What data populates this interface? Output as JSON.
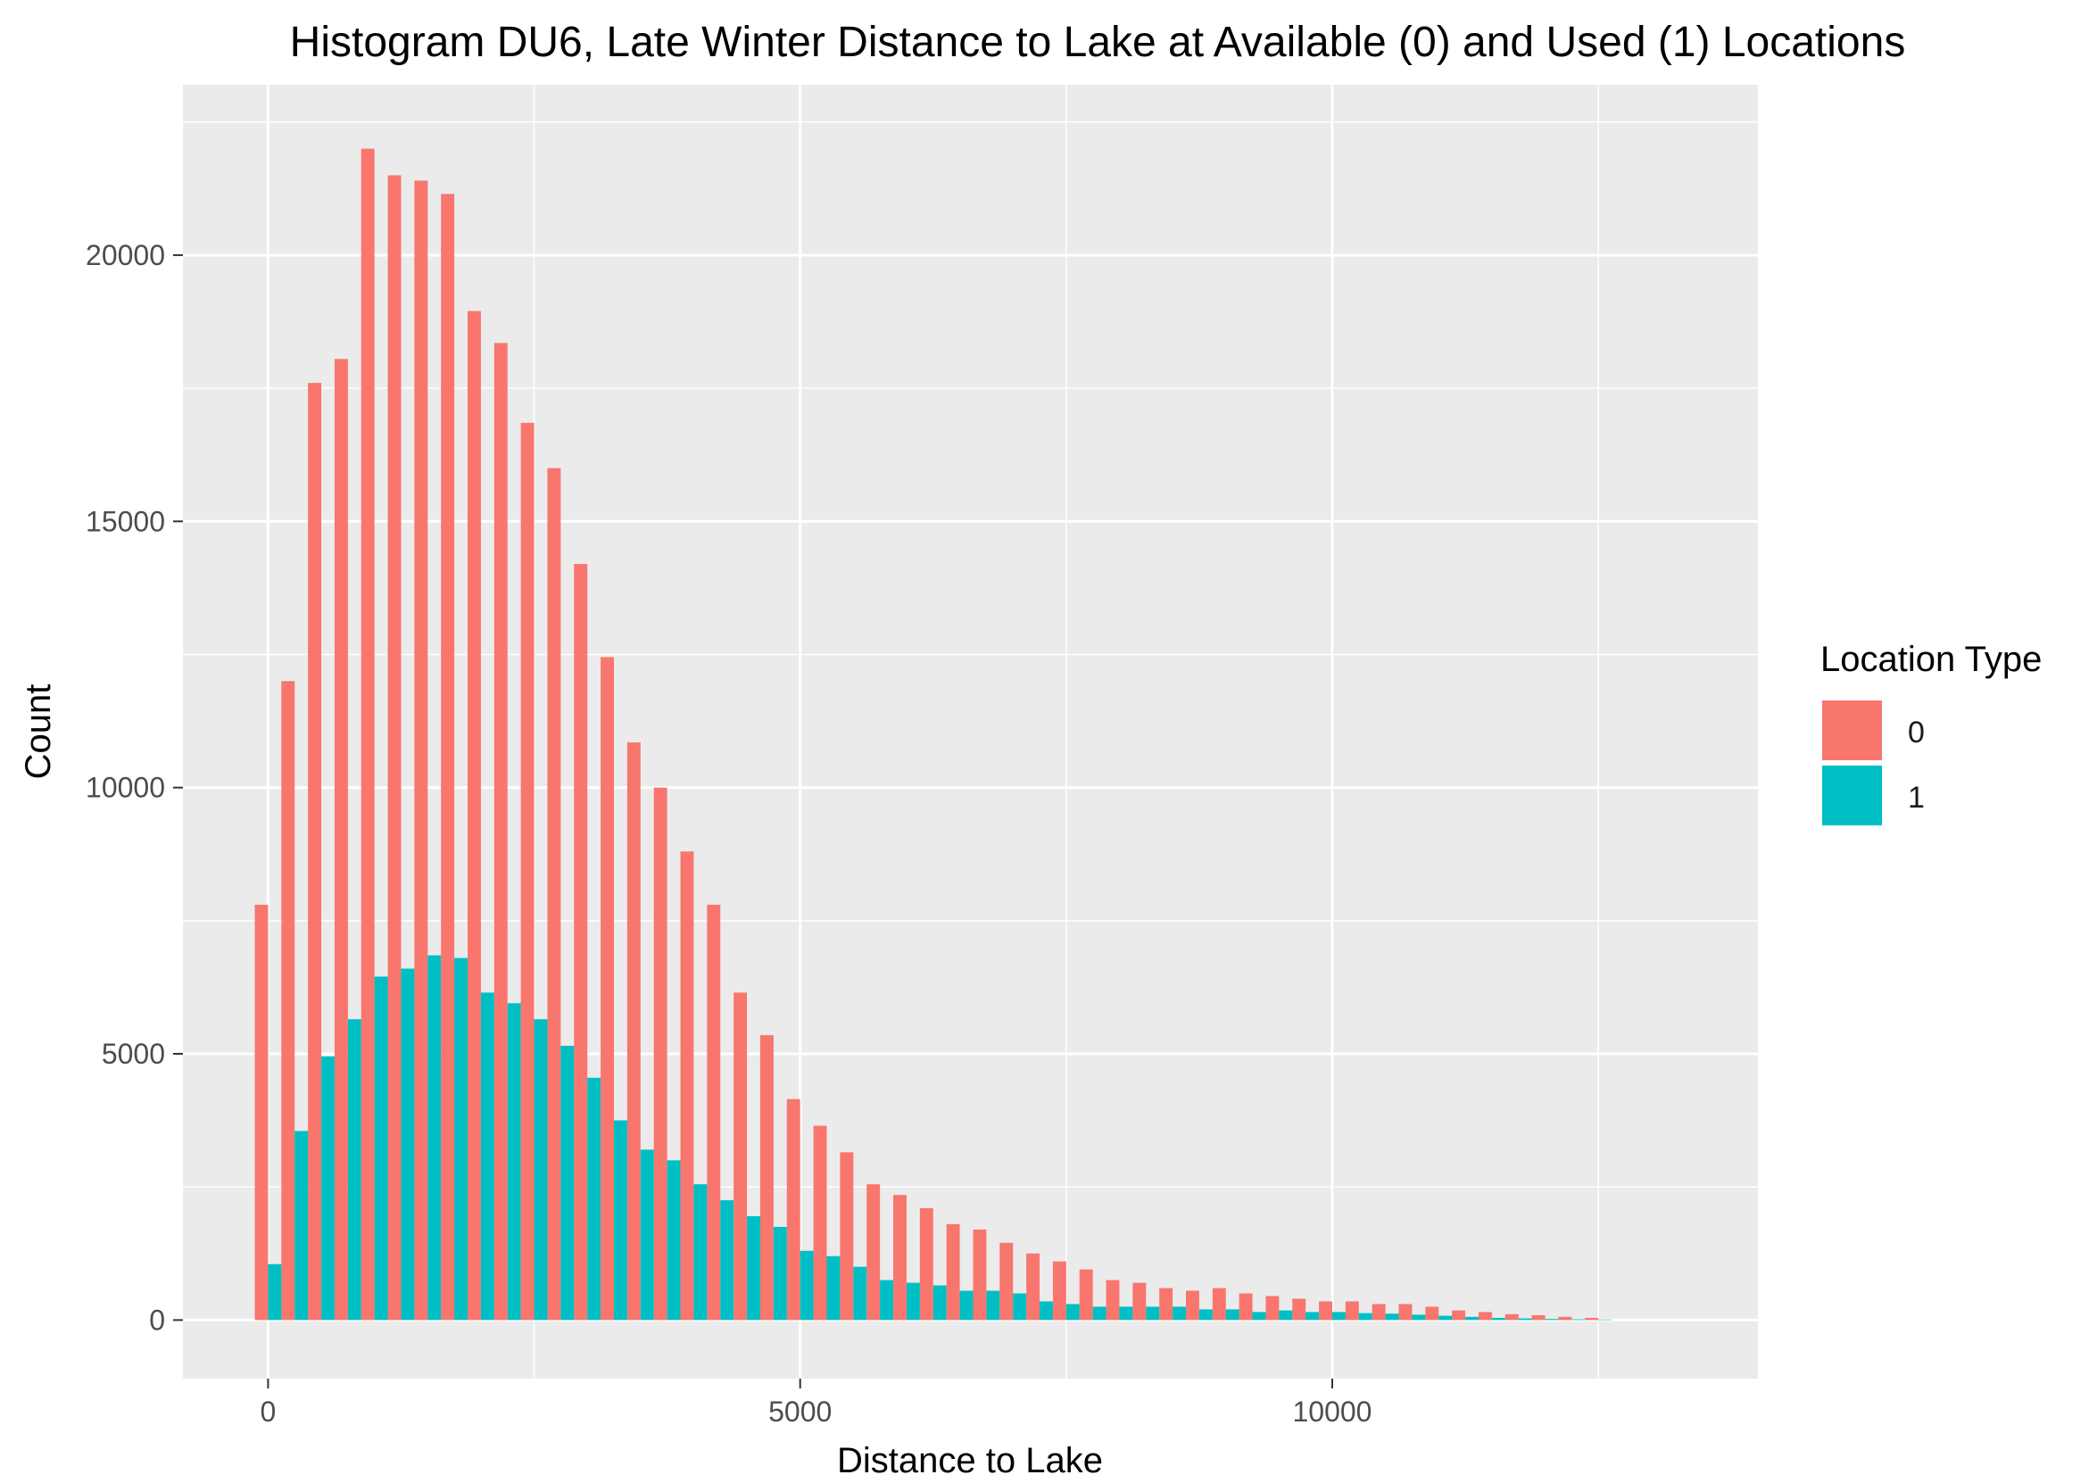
{
  "chart_data": {
    "type": "bar",
    "title": "Histogram DU6, Late Winter Distance to Lake at Available (0) and Used (1) Locations",
    "xlabel": "Distance to Lake",
    "ylabel": "Count",
    "xlim": [
      -800,
      14000
    ],
    "ylim": [
      -1100,
      23200
    ],
    "xticks": [
      0,
      5000,
      10000
    ],
    "yticks": [
      0,
      5000,
      10000,
      15000,
      20000
    ],
    "x_tick_labels": [
      "0",
      "5000",
      "10000"
    ],
    "y_tick_labels": [
      "0",
      "5000",
      "10000",
      "15000",
      "20000"
    ],
    "x_minor_gridlines": [
      2500,
      7500,
      12500
    ],
    "y_minor_gridlines": [
      2500,
      7500,
      12500,
      17500,
      22500
    ],
    "grid": true,
    "bin_width": 250,
    "bin_centers": [
      0,
      250,
      500,
      750,
      1000,
      1250,
      1500,
      1750,
      2000,
      2250,
      2500,
      2750,
      3000,
      3250,
      3500,
      3750,
      4000,
      4250,
      4500,
      4750,
      5000,
      5250,
      5500,
      5750,
      6000,
      6250,
      6500,
      6750,
      7000,
      7250,
      7500,
      7750,
      8000,
      8250,
      8500,
      8750,
      9000,
      9250,
      9500,
      9750,
      10000,
      10250,
      10500,
      10750,
      11000,
      11250,
      11500,
      11750,
      12000,
      12250,
      12500
    ],
    "legend": {
      "title": "Location Type",
      "position": "right"
    },
    "series": [
      {
        "name": "0",
        "color": "#F8766D",
        "values": [
          7800,
          12000,
          17600,
          18050,
          22000,
          21500,
          21400,
          21150,
          18950,
          18350,
          16850,
          16000,
          14200,
          12450,
          10850,
          10000,
          8800,
          7800,
          6150,
          5350,
          4150,
          3650,
          3150,
          2550,
          2350,
          2100,
          1800,
          1700,
          1450,
          1250,
          1100,
          950,
          750,
          700,
          600,
          550,
          600,
          500,
          450,
          400,
          350,
          350,
          300,
          300,
          250,
          180,
          150,
          110,
          90,
          60,
          40
        ]
      },
      {
        "name": "1",
        "color": "#00BFC4",
        "values": [
          1050,
          3550,
          4950,
          5650,
          6450,
          6600,
          6850,
          6800,
          6150,
          5950,
          5650,
          5150,
          4550,
          3750,
          3200,
          3000,
          2550,
          2250,
          1950,
          1750,
          1300,
          1200,
          1000,
          750,
          700,
          650,
          550,
          550,
          500,
          350,
          300,
          250,
          250,
          250,
          250,
          200,
          200,
          150,
          180,
          150,
          150,
          130,
          120,
          100,
          80,
          60,
          40,
          30,
          20,
          15,
          10
        ]
      }
    ]
  }
}
